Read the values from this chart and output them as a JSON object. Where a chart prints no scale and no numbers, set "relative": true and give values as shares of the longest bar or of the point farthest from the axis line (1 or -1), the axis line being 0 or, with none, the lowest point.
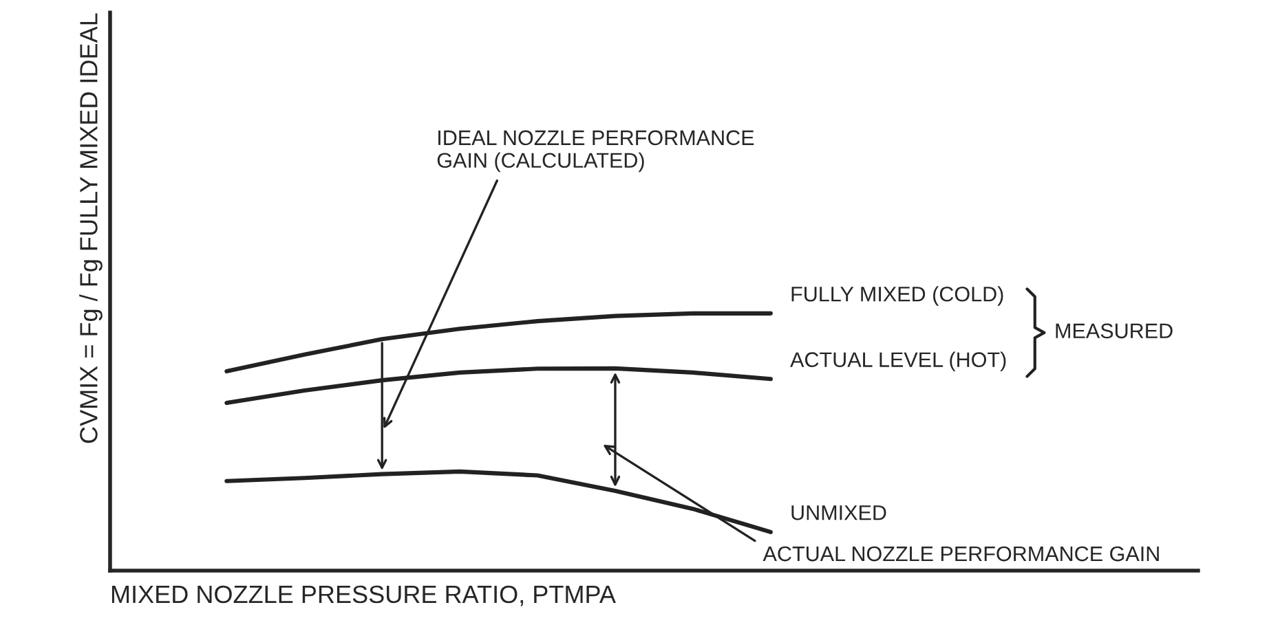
{
  "chart_data": {
    "type": "line",
    "relative": true,
    "xlabel": "MIXED NOZZLE PRESSURE RATIO, PTMPA",
    "ylabel": "CVMIX = Fg / Fg FULLY MIXED IDEAL",
    "categories": [
      null,
      null,
      null,
      null,
      null,
      null,
      null,
      null,
      null,
      null,
      null,
      null,
      null,
      null
    ],
    "series": [
      {
        "name": "FULLY MIXED (COLD)",
        "color": "#222222",
        "values": [
          null,
          0.775,
          0.84,
          0.9,
          0.94,
          0.97,
          0.99,
          1.0,
          1.0,
          null,
          null,
          null,
          null,
          null
        ]
      },
      {
        "name": "ACTUAL LEVEL (HOT)",
        "color": "#222222",
        "values": [
          null,
          0.652,
          0.7,
          0.74,
          0.77,
          0.785,
          0.786,
          0.77,
          0.745,
          null,
          null,
          null,
          null,
          null
        ]
      },
      {
        "name": "UNMIXED",
        "color": "#222222",
        "values": [
          null,
          0.348,
          0.36,
          0.375,
          0.385,
          0.37,
          0.31,
          0.24,
          0.15,
          null,
          null,
          null,
          null,
          null
        ]
      }
    ],
    "annotations": [
      "IDEAL NOZZLE PERFORMANCE\nGAIN (CALCULATED)",
      "MEASURED",
      "ACTUAL NOZZLE PERFORMANCE GAIN"
    ],
    "grid": false,
    "legend": false,
    "marker": "none",
    "line_style": "solid"
  }
}
